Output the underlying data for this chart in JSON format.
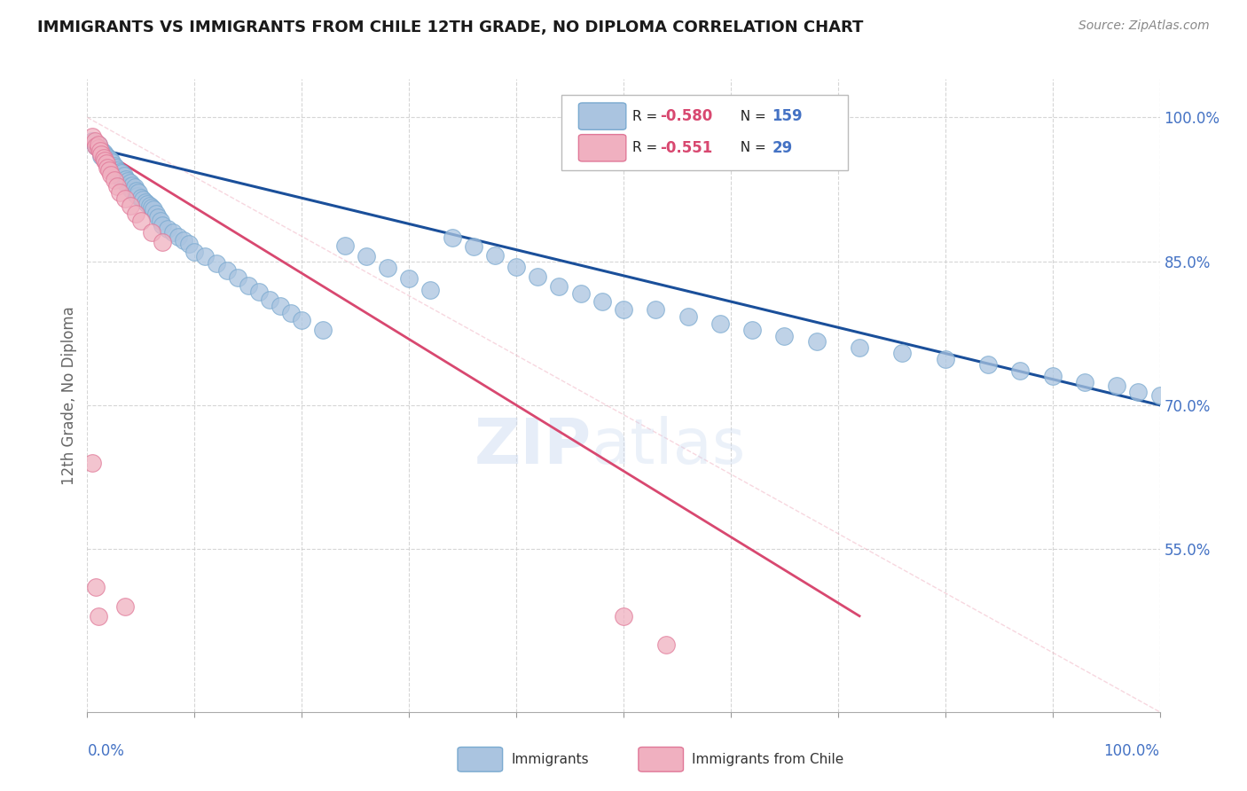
{
  "title": "IMMIGRANTS VS IMMIGRANTS FROM CHILE 12TH GRADE, NO DIPLOMA CORRELATION CHART",
  "source": "Source: ZipAtlas.com",
  "ylabel": "12th Grade, No Diploma",
  "blue_color": "#aac4e0",
  "blue_edge": "#7aaad0",
  "pink_color": "#f0b0c0",
  "pink_edge": "#e07898",
  "blue_line_color": "#1a4f9a",
  "pink_line_color": "#d84870",
  "ref_line_color": "#f0b0c0",
  "grid_color": "#cccccc",
  "title_color": "#1a1a1a",
  "axis_label_color": "#4472c4",
  "r_value_color": "#d84870",
  "n_value_color": "#4472c4",
  "background": "#ffffff",
  "xlim": [
    0.0,
    1.0
  ],
  "ylim": [
    0.38,
    1.04
  ],
  "right_yticks": [
    0.55,
    0.7,
    0.85,
    1.0
  ],
  "right_ytick_labels": [
    "55.0%",
    "70.0%",
    "85.0%",
    "100.0%"
  ],
  "blue_scatter_x": [
    0.005,
    0.008,
    0.01,
    0.01,
    0.012,
    0.013,
    0.013,
    0.015,
    0.015,
    0.016,
    0.017,
    0.018,
    0.019,
    0.02,
    0.02,
    0.021,
    0.022,
    0.022,
    0.023,
    0.024,
    0.025,
    0.025,
    0.026,
    0.027,
    0.028,
    0.029,
    0.03,
    0.031,
    0.032,
    0.033,
    0.034,
    0.035,
    0.036,
    0.037,
    0.038,
    0.039,
    0.04,
    0.041,
    0.042,
    0.043,
    0.044,
    0.045,
    0.046,
    0.047,
    0.048,
    0.05,
    0.052,
    0.054,
    0.056,
    0.058,
    0.06,
    0.062,
    0.064,
    0.066,
    0.068,
    0.07,
    0.075,
    0.08,
    0.085,
    0.09,
    0.095,
    0.1,
    0.11,
    0.12,
    0.13,
    0.14,
    0.15,
    0.16,
    0.17,
    0.18,
    0.19,
    0.2,
    0.22,
    0.24,
    0.26,
    0.28,
    0.3,
    0.32,
    0.34,
    0.36,
    0.38,
    0.4,
    0.42,
    0.44,
    0.46,
    0.48,
    0.5,
    0.53,
    0.56,
    0.59,
    0.62,
    0.65,
    0.68,
    0.72,
    0.76,
    0.8,
    0.84,
    0.87,
    0.9,
    0.93,
    0.96,
    0.98,
    1.0
  ],
  "blue_scatter_y": [
    0.975,
    0.97,
    0.968,
    0.972,
    0.965,
    0.96,
    0.966,
    0.958,
    0.963,
    0.956,
    0.961,
    0.954,
    0.959,
    0.952,
    0.957,
    0.95,
    0.955,
    0.948,
    0.953,
    0.946,
    0.95,
    0.944,
    0.948,
    0.942,
    0.945,
    0.94,
    0.943,
    0.937,
    0.942,
    0.935,
    0.939,
    0.932,
    0.936,
    0.93,
    0.934,
    0.928,
    0.932,
    0.925,
    0.929,
    0.923,
    0.927,
    0.92,
    0.924,
    0.918,
    0.922,
    0.916,
    0.914,
    0.912,
    0.91,
    0.908,
    0.906,
    0.904,
    0.9,
    0.896,
    0.892,
    0.888,
    0.884,
    0.88,
    0.876,
    0.872,
    0.868,
    0.86,
    0.855,
    0.848,
    0.84,
    0.833,
    0.825,
    0.818,
    0.81,
    0.803,
    0.796,
    0.789,
    0.778,
    0.866,
    0.855,
    0.843,
    0.832,
    0.82,
    0.875,
    0.865,
    0.856,
    0.844,
    0.834,
    0.824,
    0.816,
    0.808,
    0.8,
    0.8,
    0.792,
    0.785,
    0.778,
    0.772,
    0.766,
    0.76,
    0.754,
    0.748,
    0.742,
    0.736,
    0.73,
    0.724,
    0.72,
    0.714,
    0.71
  ],
  "pink_scatter_x": [
    0.005,
    0.007,
    0.008,
    0.01,
    0.01,
    0.012,
    0.013,
    0.015,
    0.016,
    0.018,
    0.019,
    0.02,
    0.022,
    0.025,
    0.028,
    0.03,
    0.035,
    0.04,
    0.045,
    0.05,
    0.06,
    0.07,
    0.005,
    0.008,
    0.01,
    0.035,
    0.5,
    0.54
  ],
  "pink_scatter_y": [
    0.98,
    0.975,
    0.97,
    0.968,
    0.972,
    0.965,
    0.962,
    0.958,
    0.955,
    0.952,
    0.948,
    0.945,
    0.94,
    0.935,
    0.928,
    0.922,
    0.915,
    0.908,
    0.9,
    0.892,
    0.88,
    0.87,
    0.64,
    0.51,
    0.48,
    0.49,
    0.48,
    0.45
  ],
  "blue_trend_x": [
    0.0,
    1.0
  ],
  "blue_trend_y": [
    0.97,
    0.7
  ],
  "pink_trend_x": [
    0.0,
    0.72
  ],
  "pink_trend_y": [
    0.975,
    0.48
  ],
  "ref_line_x": [
    0.0,
    1.0
  ],
  "ref_line_y": [
    1.0,
    0.38
  ]
}
